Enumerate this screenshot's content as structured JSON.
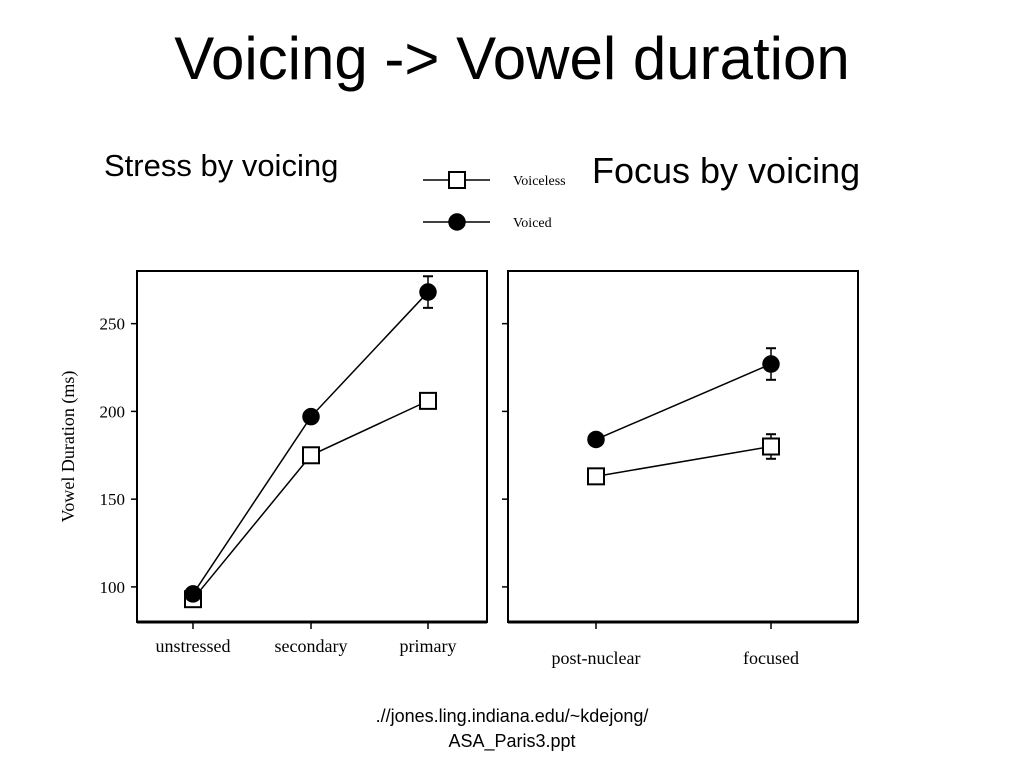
{
  "slide": {
    "title": "Voicing -> Vowel duration",
    "heading_left": "Stress by voicing",
    "heading_right": "Focus by voicing",
    "source_line1": ".//jones.ling.indiana.edu/~kdejong/",
    "source_line2": "ASA_Paris3.ppt"
  },
  "chart_data": [
    {
      "type": "line",
      "title": "Stress by voicing",
      "xlabel": "",
      "ylabel": "Vowel Duration (ms)",
      "categories": [
        "unstressed",
        "secondary",
        "primary"
      ],
      "ylim": [
        80,
        280
      ],
      "yticks": [
        100,
        150,
        200,
        250
      ],
      "series": [
        {
          "name": "Voiceless",
          "marker": "open-square",
          "values": [
            93,
            175,
            206
          ],
          "error": [
            3,
            3,
            3
          ]
        },
        {
          "name": "Voiced",
          "marker": "filled-circle",
          "values": [
            96,
            197,
            268
          ],
          "error": [
            3,
            3,
            9
          ]
        }
      ],
      "legend": "top",
      "grid": false
    },
    {
      "type": "line",
      "title": "Focus by voicing",
      "xlabel": "",
      "ylabel": "",
      "categories": [
        "post-nuclear",
        "focused"
      ],
      "ylim": [
        80,
        280
      ],
      "yticks": [
        100,
        150,
        200,
        250
      ],
      "series": [
        {
          "name": "Voiceless",
          "marker": "open-square",
          "values": [
            163,
            180
          ],
          "error": [
            3,
            7
          ]
        },
        {
          "name": "Voiced",
          "marker": "filled-circle",
          "values": [
            184,
            227
          ],
          "error": [
            3,
            9
          ]
        }
      ],
      "legend": "top",
      "grid": false
    }
  ]
}
